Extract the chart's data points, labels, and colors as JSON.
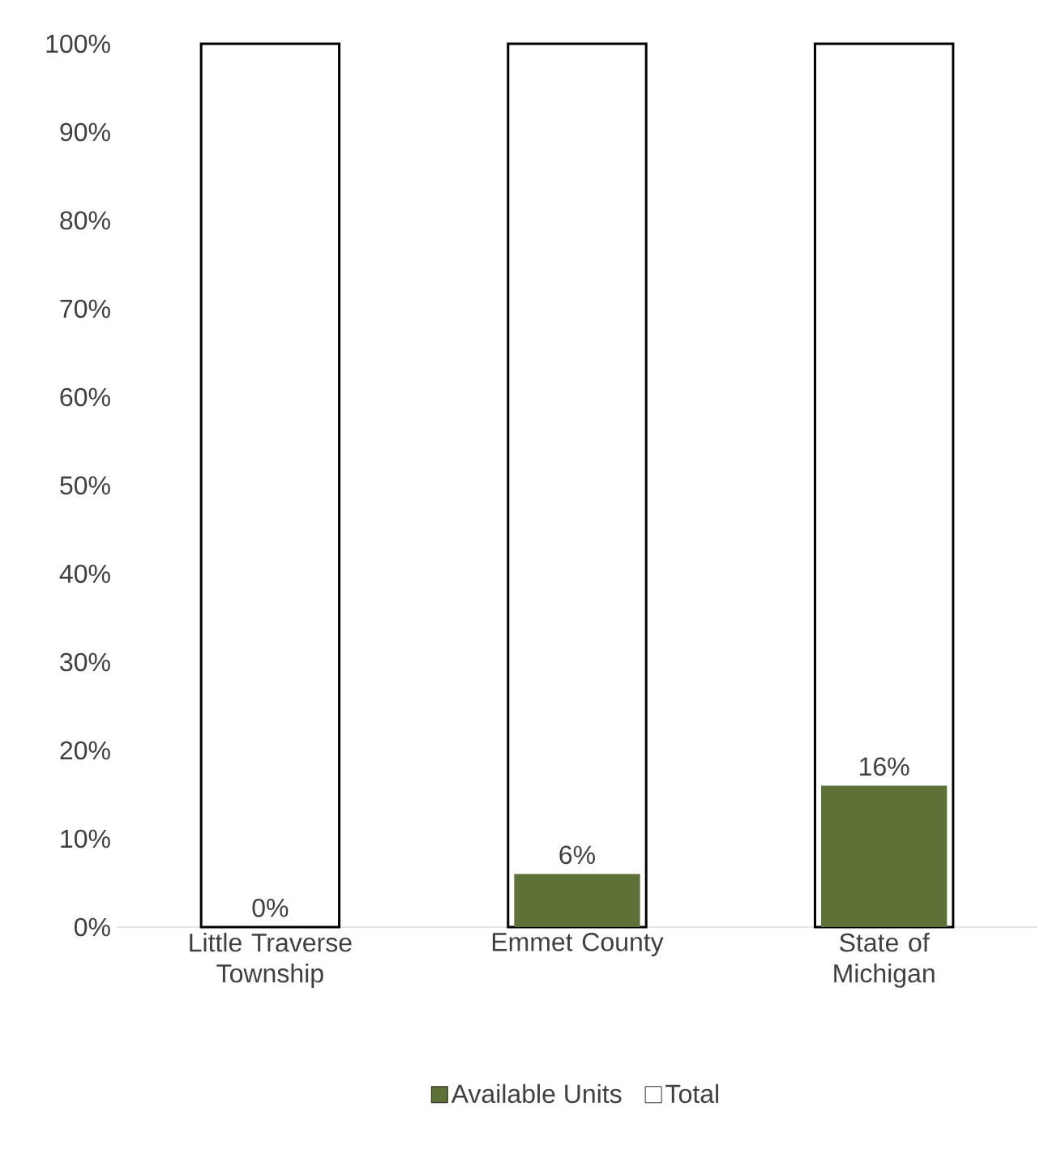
{
  "chart_data": {
    "type": "bar",
    "categories": [
      "Little Traverse Township",
      "Emmet County",
      "State of Michigan"
    ],
    "series": [
      {
        "name": "Available Units",
        "color": "#5e7137",
        "values": [
          0,
          6,
          16
        ],
        "value_labels": [
          "0%",
          "6%",
          "16%"
        ]
      },
      {
        "name": "Total",
        "color": "#ffffff",
        "values": [
          100,
          100,
          100
        ]
      }
    ],
    "ylim": [
      0,
      100
    ],
    "yticks": [
      {
        "value": 0,
        "label": "0%"
      },
      {
        "value": 10,
        "label": "10%"
      },
      {
        "value": 20,
        "label": "20%"
      },
      {
        "value": 30,
        "label": "30%"
      },
      {
        "value": 40,
        "label": "40%"
      },
      {
        "value": 50,
        "label": "50%"
      },
      {
        "value": 60,
        "label": "60%"
      },
      {
        "value": 70,
        "label": "70%"
      },
      {
        "value": 80,
        "label": "80%"
      },
      {
        "value": 90,
        "label": "90%"
      },
      {
        "value": 100,
        "label": "100%"
      }
    ],
    "legend": "bottom"
  }
}
